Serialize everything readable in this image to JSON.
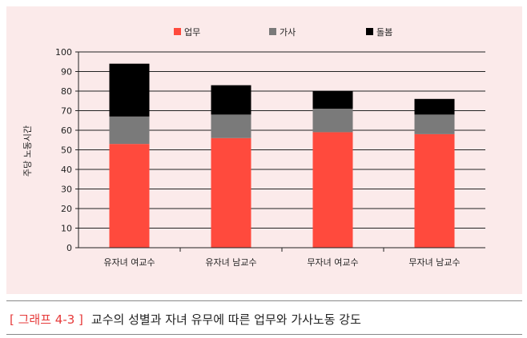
{
  "chart_data": {
    "type": "bar",
    "stacked": true,
    "categories": [
      "유자녀 여교수",
      "유자녀 남교수",
      "무자녀 여교수",
      "무자녀 남교수"
    ],
    "series": [
      {
        "name": "업무",
        "color": "#ff4a3d",
        "values": [
          53,
          56,
          59,
          58
        ]
      },
      {
        "name": "가사",
        "color": "#7a7a7a",
        "values": [
          14,
          12,
          12,
          10
        ]
      },
      {
        "name": "돌봄",
        "color": "#000000",
        "values": [
          27,
          15,
          9,
          8
        ]
      }
    ],
    "ylabel": "주당 노동시간",
    "ylim": [
      0,
      100
    ],
    "yticks": [
      0,
      10,
      20,
      30,
      40,
      50,
      60,
      70,
      80,
      90,
      100
    ],
    "grid": true,
    "legend_position": "top"
  },
  "caption": {
    "tag": "[ 그래프 4-3 ]",
    "text": "교수의 성별과 자녀 유무에 따른 업무와 가사노동 강도"
  }
}
